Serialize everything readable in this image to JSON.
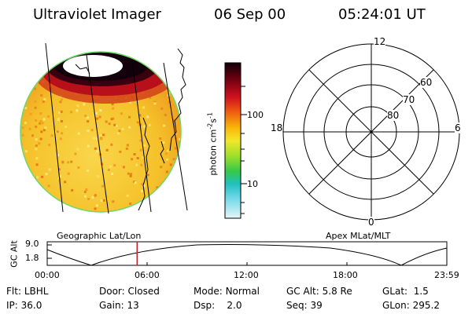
{
  "header": {
    "instrument": "Ultraviolet Imager",
    "date": "06 Sep 00",
    "time": "05:24:01 UT"
  },
  "colorbar": {
    "unit_text": "photon cm",
    "unit_sup1": "-2",
    "unit_mid": "s",
    "unit_sup2": "-1",
    "tick_100": "100",
    "tick_10": "10"
  },
  "polar_plot": {
    "label_top": "12",
    "label_bottom": "0",
    "label_left": "18",
    "label_right": "6",
    "lat_60": "60",
    "lat_70": "70",
    "lat_80": "80"
  },
  "timeline": {
    "left_title": "Geographic Lat/Lon",
    "right_title": "Apex MLat/MLT",
    "yaxis_label": "GC Alt",
    "y_top": "9.0",
    "y_bottom": "1.8",
    "times": [
      "00:00",
      "06:00",
      "12:00",
      "18:00",
      "23:59"
    ],
    "current_marker_hours": 5.4
  },
  "info": {
    "flt_label": "Flt:",
    "flt_value": "LBHL",
    "door_label": "Door:",
    "door_value": "Closed",
    "mode_label": "Mode:",
    "mode_value": "Normal",
    "gcalt_label": "GC Alt:",
    "gcalt_value": "5.8 Re",
    "glat_label": "GLat:",
    "glat_value": "1.5",
    "ip_label": "IP:",
    "ip_value": "36.0",
    "gain_label": "Gain:",
    "gain_value": "13",
    "dsp_label": "Dsp:",
    "dsp_value": "2.0",
    "seq_label": "Seq:",
    "seq_value": "39",
    "glon_label": "GLon:",
    "glon_value": "295.2"
  },
  "colors": {
    "aurora_core": "#1a0008",
    "aurora_red": "#b8101a",
    "aurora_orange": "#f08a00",
    "dayglow_yellow": "#f6cf2a",
    "marker": "#c0202a"
  }
}
